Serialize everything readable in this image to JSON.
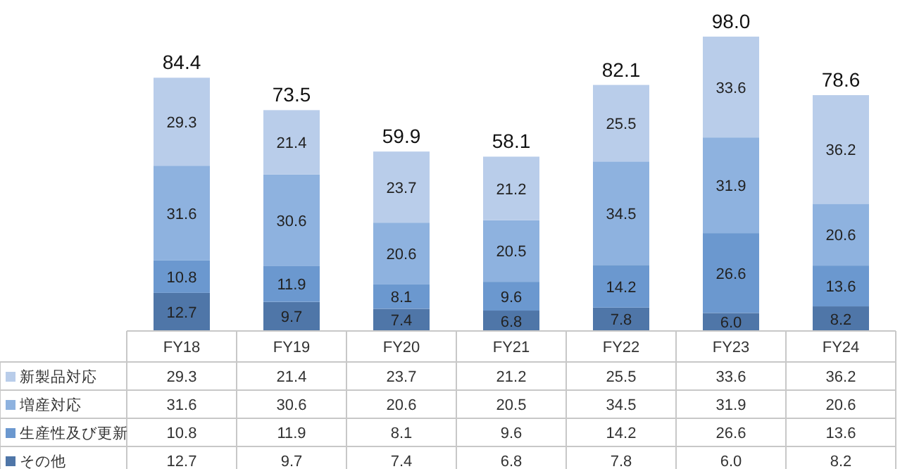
{
  "chart_data": {
    "type": "bar",
    "stacked": true,
    "legend": "bottom",
    "categories": [
      "FY18",
      "FY19",
      "FY20",
      "FY21",
      "FY22",
      "FY23",
      "FY24"
    ],
    "series": [
      {
        "name": "その他",
        "color": "#4f76a8",
        "values": [
          12.7,
          9.7,
          7.4,
          6.8,
          7.8,
          6.0,
          8.2
        ],
        "value_labels": [
          "12.7",
          "9.7",
          "7.4",
          "6.8",
          "7.8",
          "6.0",
          "8.2"
        ]
      },
      {
        "name": "生産性及び更新",
        "color": "#6b98cf",
        "values": [
          10.8,
          11.9,
          8.1,
          9.6,
          14.2,
          26.6,
          13.6
        ],
        "value_labels": [
          "10.8",
          "11.9",
          "8.1",
          "9.6",
          "14.2",
          "26.6",
          "13.6"
        ]
      },
      {
        "name": "増産対応",
        "color": "#8eb2df",
        "values": [
          31.6,
          30.6,
          20.6,
          20.5,
          34.5,
          31.9,
          20.6
        ],
        "value_labels": [
          "31.6",
          "30.6",
          "20.6",
          "20.5",
          "34.5",
          "31.9",
          "20.6"
        ]
      },
      {
        "name": "新製品対応",
        "color": "#b9cdea",
        "values": [
          29.3,
          21.4,
          23.7,
          21.2,
          25.5,
          33.6,
          36.2
        ],
        "value_labels": [
          "29.3",
          "21.4",
          "23.7",
          "21.2",
          "25.5",
          "33.6",
          "36.2"
        ]
      }
    ],
    "totals": [
      "84.4",
      "73.5",
      "59.9",
      "58.1",
      "82.1",
      "98.0",
      "78.6"
    ]
  }
}
